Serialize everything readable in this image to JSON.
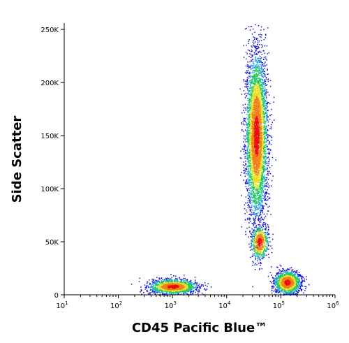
{
  "chart_data": {
    "type": "scatter",
    "title": "",
    "xlabel": "CD45 Pacific Blue™",
    "ylabel": "Side Scatter",
    "x_scale": "log",
    "xlim": [
      10,
      1000000
    ],
    "ylim": [
      0,
      256000
    ],
    "x_ticks": [
      {
        "value": 10,
        "base": "10",
        "exp": "1"
      },
      {
        "value": 100,
        "base": "10",
        "exp": "2"
      },
      {
        "value": 1000,
        "base": "10",
        "exp": "3"
      },
      {
        "value": 10000,
        "base": "10",
        "exp": "4"
      },
      {
        "value": 100000,
        "base": "10",
        "exp": "5"
      },
      {
        "value": 1000000,
        "base": "10",
        "exp": "6"
      }
    ],
    "y_ticks": [
      {
        "value": 0,
        "label": "0"
      },
      {
        "value": 50000,
        "label": "50K"
      },
      {
        "value": 100000,
        "label": "100K"
      },
      {
        "value": 150000,
        "label": "150K"
      },
      {
        "value": 200000,
        "label": "200K"
      },
      {
        "value": 250000,
        "label": "250K"
      }
    ],
    "grid": false,
    "density_coloring": "pseudocolor (blue-green-yellow-red)",
    "populations": [
      {
        "x_center": 1000,
        "y_center": 8000,
        "x_spread_log": 0.22,
        "y_spread": 3500,
        "count": 1500
      },
      {
        "x_center": 35000,
        "y_center": 150000,
        "x_spread_log": 0.1,
        "y_spread": 38000,
        "count": 4500
      },
      {
        "x_center": 40000,
        "y_center": 50000,
        "x_spread_log": 0.08,
        "y_spread": 8000,
        "count": 600
      },
      {
        "x_center": 130000,
        "y_center": 12000,
        "x_spread_log": 0.12,
        "y_spread": 5500,
        "count": 1400
      }
    ],
    "colors": {
      "low": "#1010d8",
      "mid": "#20c860",
      "high_mid": "#e8e020",
      "high": "#e81010"
    }
  }
}
